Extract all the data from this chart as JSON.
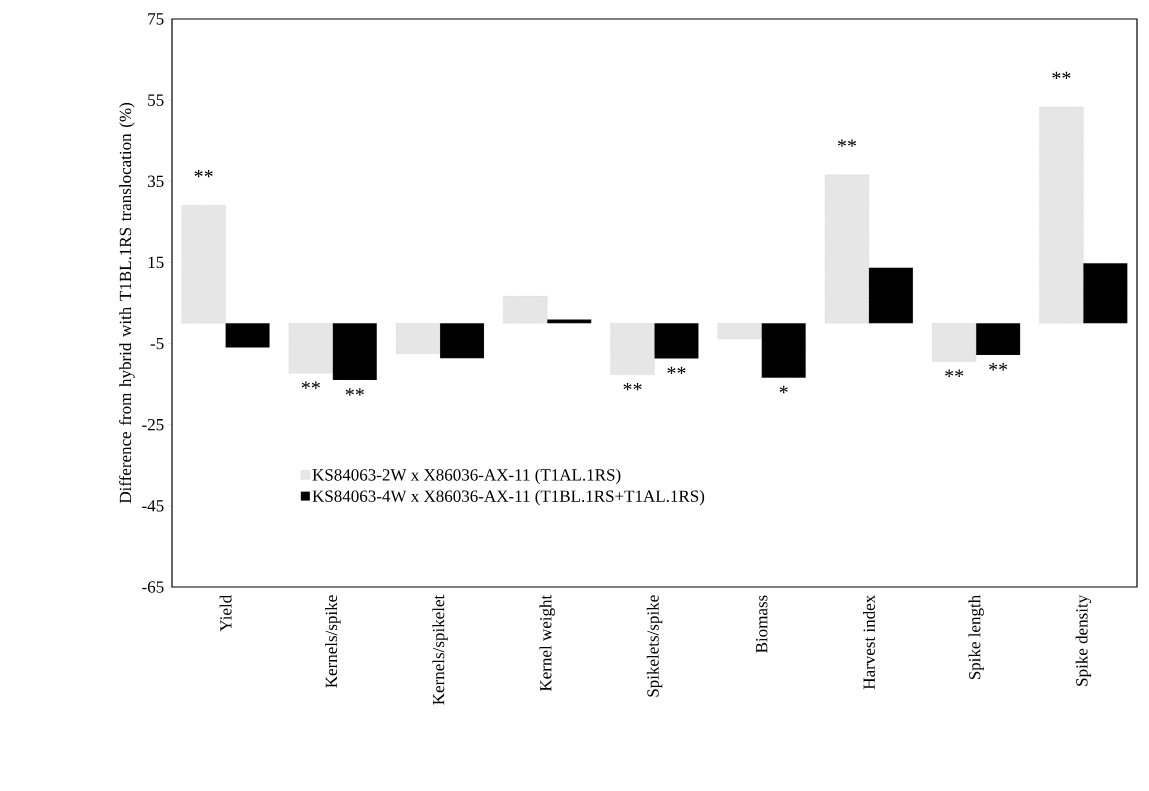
{
  "chart_data": {
    "type": "bar",
    "ylabel": "Difference from  hybrid with T1BL.1RS translocation (%)",
    "categories": [
      "Yield",
      "Kernels/spike",
      "Kernels/spikelet",
      "Kernel weight",
      "Spikelets/spike",
      "Biomass",
      "Harvest index",
      "Spike length",
      "Spike density"
    ],
    "series": [
      {
        "name": "KS84063-2W x X86036-AX-11 (T1AL.1RS)",
        "color": "#e6e6e6",
        "values": [
          29.1,
          -12.3,
          -7.5,
          6.7,
          -12.7,
          -3.9,
          36.6,
          -9.4,
          53.3
        ]
      },
      {
        "name": "KS84063-4W x X86036-AX-11 (T1BL.1RS+T1AL.1RS)",
        "color": "#000000",
        "values": [
          -6.0,
          -14.0,
          -8.6,
          0.9,
          -8.7,
          -13.4,
          13.7,
          -7.8,
          14.8
        ]
      }
    ],
    "ylim": [
      -65,
      75
    ],
    "yticks": [
      75,
      55,
      35,
      15,
      -5,
      -25,
      -45,
      -65
    ],
    "grid": false,
    "legend": "bottom left",
    "annotations": [
      {
        "text": "**",
        "x": "Yield",
        "y": 29.1
      },
      {
        "text": "**",
        "x": "Kernels/spike",
        "y": -12.3
      },
      {
        "text": "**",
        "x": "Kernels/spike",
        "y": -14.0
      },
      {
        "text": "**",
        "x": "Spikelets/spike",
        "y": -12.7
      },
      {
        "text": "**",
        "x": "Spikelets/spike",
        "y": -8.7
      },
      {
        "text": "*",
        "x": "Biomass",
        "y": -13.4
      },
      {
        "text": "**",
        "x": "Harvest index",
        "y": 36.6
      },
      {
        "text": "**",
        "x": "Spike length",
        "y": -9.4
      },
      {
        "text": "**",
        "x": "Spike length",
        "y": -7.8
      },
      {
        "text": "**",
        "x": "Spike density",
        "y": 53.3
      }
    ]
  }
}
